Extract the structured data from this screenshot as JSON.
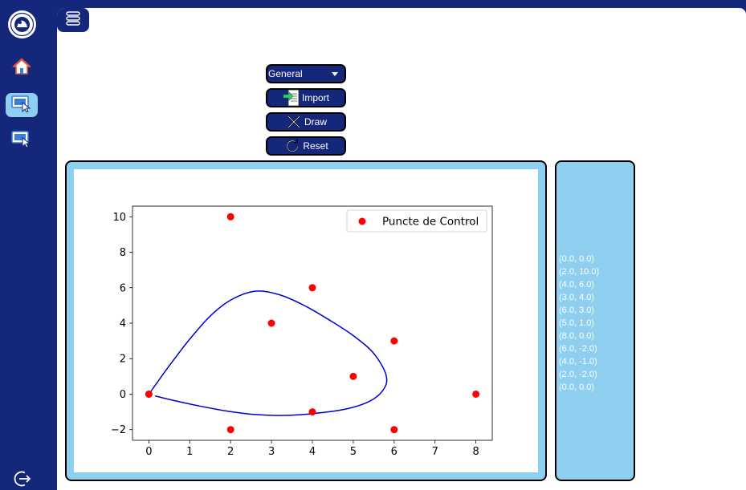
{
  "sidebar": {
    "items": [
      {
        "icon": "home-icon",
        "active": false
      },
      {
        "icon": "monitor-cursor-icon",
        "active": true
      },
      {
        "icon": "monitor-cursor-icon",
        "active": false
      }
    ],
    "logout_icon": "logout-icon"
  },
  "toolbar": {
    "mode_selected": "General",
    "import_label": "Import",
    "draw_label": "Draw",
    "reset_label": "Reset"
  },
  "points_list": [
    "(0.0, 0.0)",
    "(2.0, 10.0)",
    "(4.0, 6.0)",
    "(3.0, 4.0)",
    "(6.0, 3.0)",
    "(5.0, 1.0)",
    "(8.0, 0.0)",
    "(6.0, -2.0)",
    "(4.0, -1.0)",
    "(2.0, -2.0)",
    "(0.0, 0.0)"
  ],
  "colors": {
    "navy": "#14277a",
    "panel": "#8ecff0",
    "points": "#ff0000",
    "curve": "#0000cc"
  },
  "chart_data": {
    "type": "scatter",
    "legend": "Puncte de Control",
    "legend_position": "top-right",
    "xlim": [
      -0.4,
      8.4
    ],
    "ylim": [
      -2.6,
      10.6
    ],
    "xticks": [
      0,
      1,
      2,
      3,
      4,
      5,
      6,
      7,
      8
    ],
    "yticks": [
      -2,
      0,
      2,
      4,
      6,
      8,
      10
    ],
    "grid": false,
    "control_points": [
      [
        0,
        0
      ],
      [
        2,
        10
      ],
      [
        4,
        6
      ],
      [
        3,
        4
      ],
      [
        6,
        3
      ],
      [
        5,
        1
      ],
      [
        8,
        0
      ],
      [
        6,
        -2
      ],
      [
        4,
        -1
      ],
      [
        2,
        -2
      ],
      [
        0,
        0
      ]
    ],
    "curve": [
      [
        0.0,
        0.0
      ],
      [
        0.5,
        1.6
      ],
      [
        1.0,
        3.1
      ],
      [
        1.5,
        4.4
      ],
      [
        2.0,
        5.3
      ],
      [
        2.6,
        5.8
      ],
      [
        3.2,
        5.6
      ],
      [
        3.8,
        5.0
      ],
      [
        4.4,
        4.2
      ],
      [
        5.0,
        3.3
      ],
      [
        5.5,
        2.3
      ],
      [
        5.8,
        1.1
      ],
      [
        5.75,
        0.3
      ],
      [
        5.4,
        -0.4
      ],
      [
        4.8,
        -0.85
      ],
      [
        4.0,
        -1.1
      ],
      [
        3.3,
        -1.2
      ],
      [
        2.6,
        -1.15
      ],
      [
        1.9,
        -0.95
      ],
      [
        1.2,
        -0.65
      ],
      [
        0.6,
        -0.35
      ],
      [
        0.15,
        -0.1
      ]
    ]
  }
}
